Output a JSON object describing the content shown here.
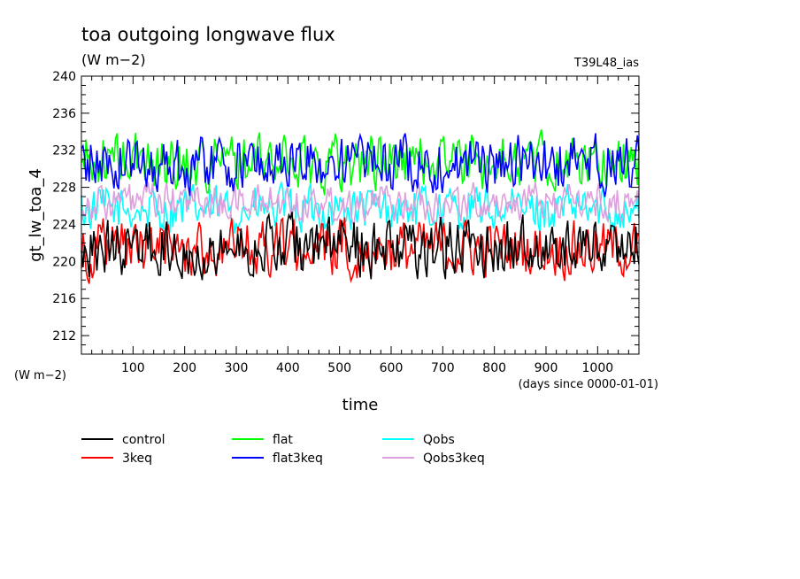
{
  "chart_data": {
    "type": "line",
    "title": "toa outgoing longwave flux",
    "units_label": "(W m−2)",
    "run_label": "T39L48_ias",
    "xlabel": "time",
    "x_units_label": "(days since 0000-01-01)",
    "ylabel": "gt_lw_toa_4",
    "y_units_label": "(W m−2)",
    "xlim": [
      0,
      1080
    ],
    "ylim": [
      210,
      240
    ],
    "x_ticks": [
      100,
      200,
      300,
      400,
      500,
      600,
      700,
      800,
      900,
      1000
    ],
    "y_ticks": [
      212,
      216,
      220,
      224,
      228,
      232,
      236,
      240
    ],
    "grid": false,
    "legend_position": "bottom-left",
    "series": [
      {
        "name": "control",
        "color": "#000000",
        "mean": 221.6,
        "amp": 1.9,
        "min": 216,
        "max": 226.5
      },
      {
        "name": "3keq",
        "color": "#ff0000",
        "mean": 221.4,
        "amp": 1.8,
        "min": 217.6,
        "max": 226
      },
      {
        "name": "flat",
        "color": "#00ff00",
        "mean": 230.8,
        "amp": 1.8,
        "min": 226.5,
        "max": 235
      },
      {
        "name": "flat3keq",
        "color": "#0000ff",
        "mean": 230.6,
        "amp": 1.8,
        "min": 226.5,
        "max": 235
      },
      {
        "name": "Qobs",
        "color": "#00ffff",
        "mean": 225.6,
        "amp": 1.5,
        "min": 222,
        "max": 229
      },
      {
        "name": "Qobs3keq",
        "color": "#dda0dd",
        "mean": 226.4,
        "amp": 1.2,
        "min": 223,
        "max": 229.5
      }
    ]
  }
}
